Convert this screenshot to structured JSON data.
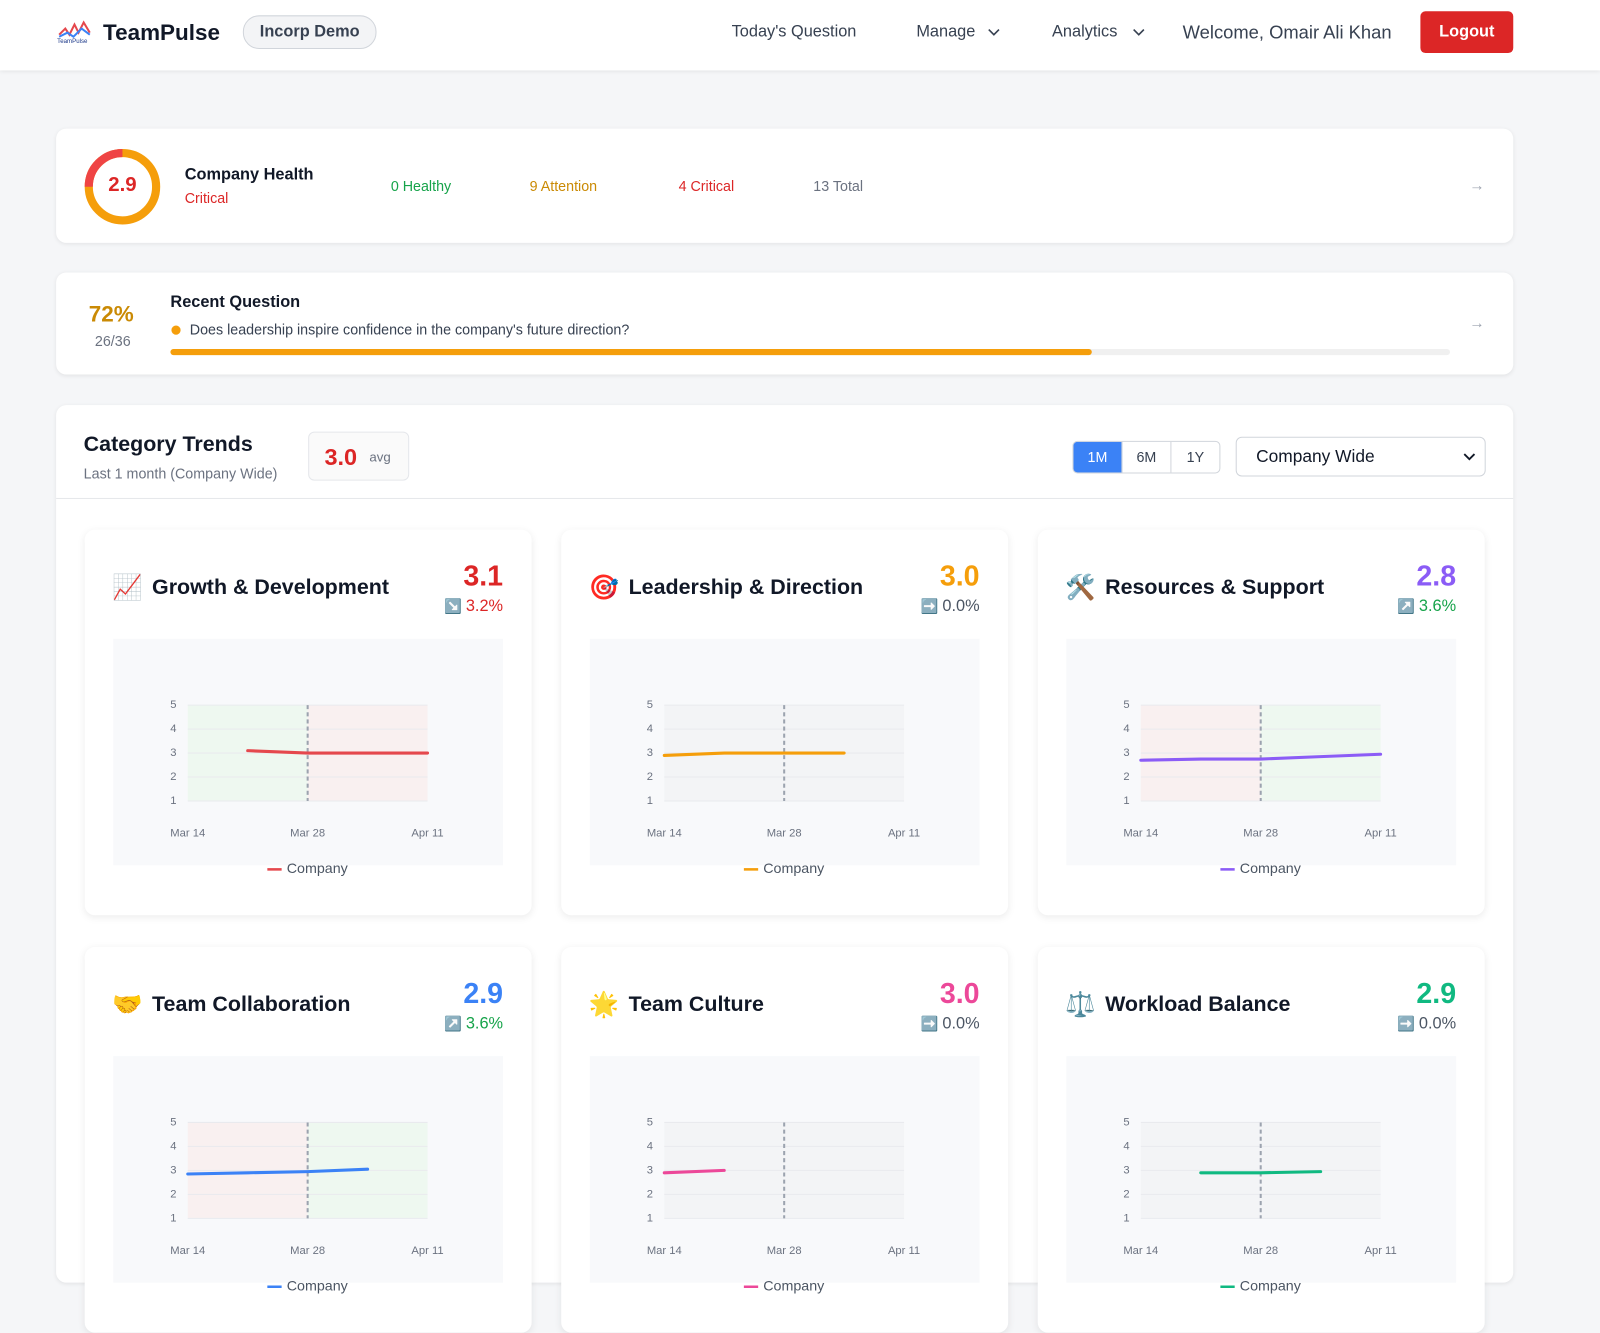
{
  "header": {
    "brand": "TeamPulse",
    "logo_caption": "TeamPulse",
    "org": "Incorp Demo",
    "nav": [
      "Today's Question",
      "Manage",
      "Analytics"
    ],
    "welcome": "Welcome, Omair Ali Khan",
    "logout": "Logout"
  },
  "health": {
    "score": "2.9",
    "title": "Company Health",
    "status": "Critical",
    "stats": [
      {
        "text": "0 Healthy",
        "color": "#16a34a"
      },
      {
        "text": "9 Attention",
        "color": "#ca8a04"
      },
      {
        "text": "4 Critical",
        "color": "#dc2626"
      },
      {
        "text": "13 Total",
        "color": "#6b7280"
      }
    ]
  },
  "question": {
    "rate": {
      "value": 72,
      "label": "72%"
    },
    "count": "26/36",
    "title": "Recent Question",
    "text": "Does leadership inspire confidence in the company's future direction?"
  },
  "trends": {
    "title": "Category Trends",
    "subtitle": "Last 1 month (Company Wide)",
    "avg": "3.0",
    "avg_unit": "avg",
    "ranges": [
      "1M",
      "6M",
      "1Y"
    ],
    "selected_range": 0,
    "scope": "Company Wide",
    "cards": [
      {
        "icon": "📈",
        "title": "Growth & Development",
        "score": "3.1",
        "color": "#dc2626",
        "change": {
          "icon": "↘️",
          "text": "3.2%",
          "color": "#dc2626"
        },
        "chart": {
          "type": "line",
          "categories": [
            "Mar 14",
            null,
            "Mar 28",
            null,
            "Apr 11"
          ],
          "ylim": [
            1,
            5
          ],
          "yticks": [
            1,
            2,
            3,
            4,
            5
          ],
          "zones": [
            "#eef8f0",
            "#f9f0f0"
          ],
          "series": [
            {
              "name": "Company",
              "color": "#e5484d",
              "values": [
                null,
                3.1,
                3.0,
                3.0,
                3.0
              ]
            }
          ]
        }
      },
      {
        "icon": "🎯",
        "title": "Leadership & Direction",
        "score": "3.0",
        "color": "#f59e0b",
        "change": {
          "icon": "➡️",
          "text": "0.0%",
          "color": "#4b5563"
        },
        "chart": {
          "type": "line",
          "categories": [
            "Mar 14",
            null,
            "Mar 28",
            null,
            "Apr 11"
          ],
          "ylim": [
            1,
            5
          ],
          "yticks": [
            1,
            2,
            3,
            4,
            5
          ],
          "zones": [
            "#f3f4f6",
            "#f3f4f6"
          ],
          "series": [
            {
              "name": "Company",
              "color": "#f59e0b",
              "values": [
                2.9,
                3.0,
                3.0,
                3.0,
                null
              ]
            }
          ]
        }
      },
      {
        "icon": "🛠️",
        "title": "Resources & Support",
        "score": "2.8",
        "color": "#8b5cf6",
        "change": {
          "icon": "↗️",
          "text": "3.6%",
          "color": "#16a34a"
        },
        "chart": {
          "type": "line",
          "categories": [
            "Mar 14",
            null,
            "Mar 28",
            null,
            "Apr 11"
          ],
          "ylim": [
            1,
            5
          ],
          "yticks": [
            1,
            2,
            3,
            4,
            5
          ],
          "zones": [
            "#f9f0f0",
            "#eef8f0"
          ],
          "series": [
            {
              "name": "Company",
              "color": "#8b5cf6",
              "values": [
                2.7,
                2.75,
                2.75,
                2.85,
                2.95
              ]
            }
          ]
        }
      },
      {
        "icon": "🤝",
        "title": "Team Collaboration",
        "score": "2.9",
        "color": "#3b82f6",
        "change": {
          "icon": "↗️",
          "text": "3.6%",
          "color": "#16a34a"
        },
        "chart": {
          "type": "line",
          "categories": [
            "Mar 14",
            null,
            "Mar 28",
            null,
            "Apr 11"
          ],
          "ylim": [
            1,
            5
          ],
          "yticks": [
            1,
            2,
            3,
            4,
            5
          ],
          "zones": [
            "#f9f0f0",
            "#eef8f0"
          ],
          "series": [
            {
              "name": "Company",
              "color": "#3b82f6",
              "values": [
                2.85,
                2.9,
                2.95,
                3.05,
                null
              ]
            }
          ]
        }
      },
      {
        "icon": "🌟",
        "title": "Team Culture",
        "score": "3.0",
        "color": "#ec4899",
        "change": {
          "icon": "➡️",
          "text": "0.0%",
          "color": "#4b5563"
        },
        "chart": {
          "type": "line",
          "categories": [
            "Mar 14",
            null,
            "Mar 28",
            null,
            "Apr 11"
          ],
          "ylim": [
            1,
            5
          ],
          "yticks": [
            1,
            2,
            3,
            4,
            5
          ],
          "zones": [
            "#f3f4f6",
            "#f3f4f6"
          ],
          "series": [
            {
              "name": "Company",
              "color": "#ec4899",
              "values": [
                2.9,
                3.0,
                null,
                null,
                null
              ]
            }
          ]
        }
      },
      {
        "icon": "⚖️",
        "title": "Workload Balance",
        "score": "2.9",
        "color": "#10b981",
        "change": {
          "icon": "➡️",
          "text": "0.0%",
          "color": "#4b5563"
        },
        "chart": {
          "type": "line",
          "categories": [
            "Mar 14",
            null,
            "Mar 28",
            null,
            "Apr 11"
          ],
          "ylim": [
            1,
            5
          ],
          "yticks": [
            1,
            2,
            3,
            4,
            5
          ],
          "zones": [
            "#f3f4f6",
            "#f3f4f6"
          ],
          "series": [
            {
              "name": "Company",
              "color": "#10b981",
              "values": [
                null,
                2.9,
                2.9,
                2.95,
                null
              ]
            }
          ]
        }
      }
    ]
  }
}
